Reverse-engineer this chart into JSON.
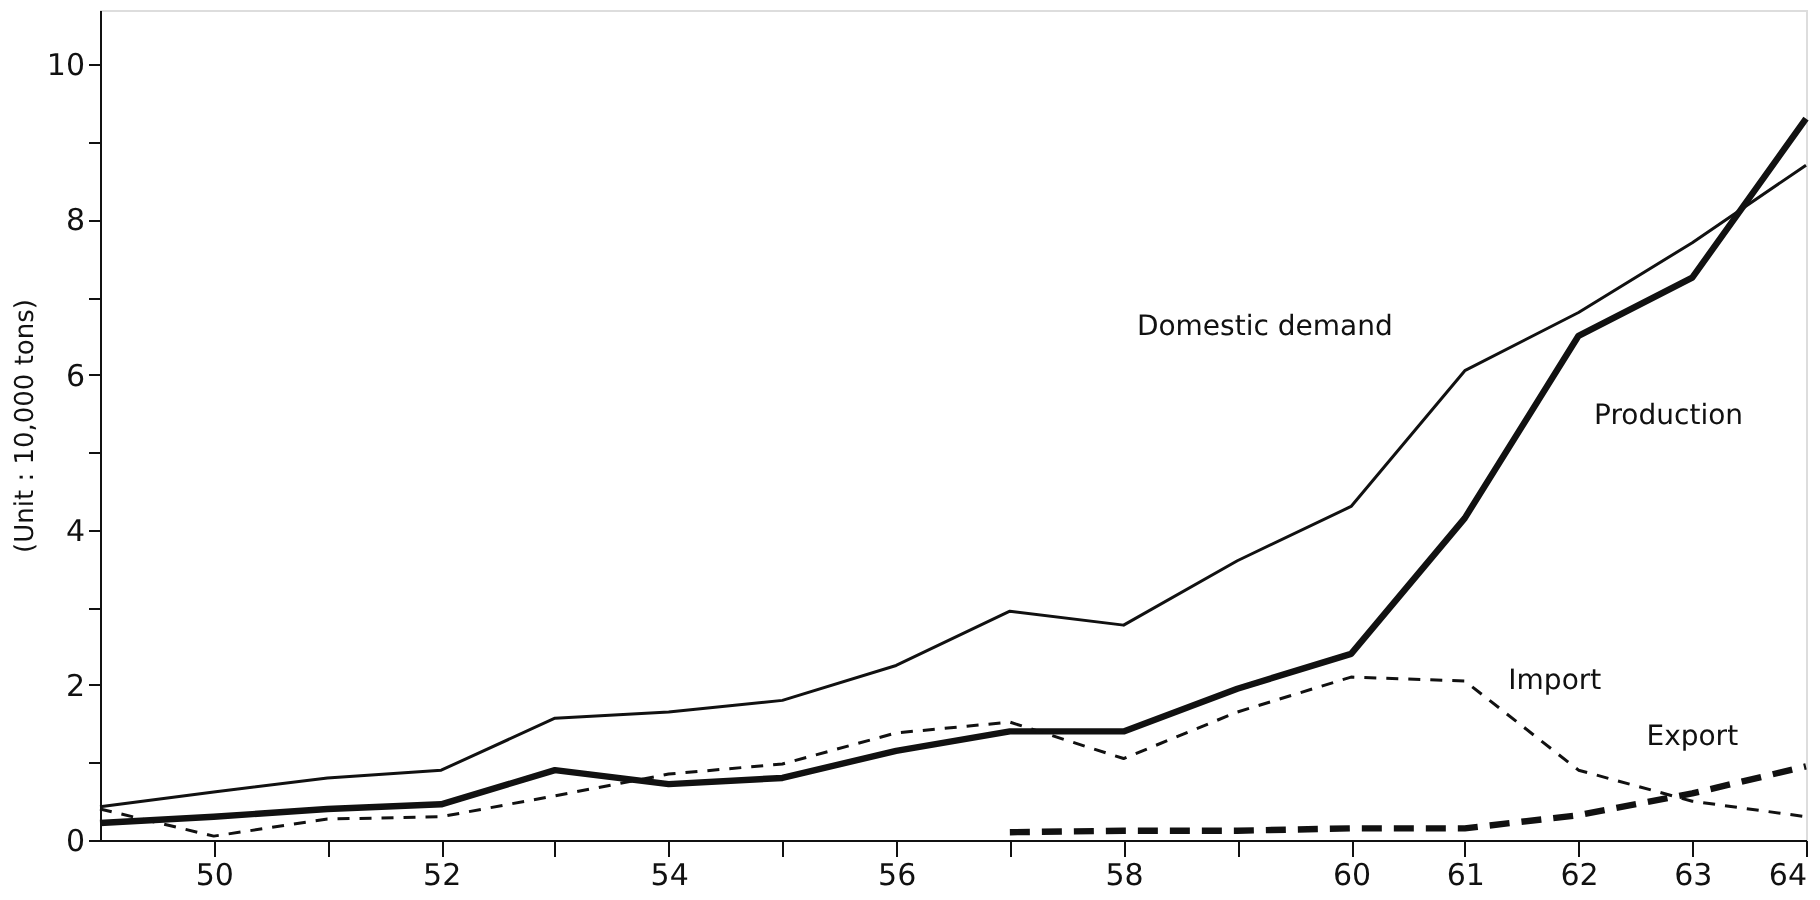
{
  "chart_data": {
    "type": "line",
    "ylabel": "(Unit : 10,000 tons)",
    "x": [
      49,
      50,
      51,
      52,
      53,
      54,
      55,
      56,
      57,
      58,
      59,
      60,
      61,
      62,
      63,
      64
    ],
    "xlim": [
      49,
      64
    ],
    "xticks": [
      50,
      {
        "value": 51,
        "label": null
      },
      52,
      {
        "value": 53,
        "label": null
      },
      54,
      {
        "value": 55,
        "label": null
      },
      56,
      {
        "value": 57,
        "label": null
      },
      58,
      {
        "value": 59,
        "label": null
      },
      60,
      61,
      62,
      63,
      64
    ],
    "ylim": [
      0,
      10.7
    ],
    "yticks": [
      0,
      {
        "value": 1,
        "label": null
      },
      2,
      {
        "value": 3,
        "label": null
      },
      4,
      {
        "value": 5,
        "label": null
      },
      6,
      {
        "value": 7,
        "label": null
      },
      8,
      {
        "value": 9,
        "label": null
      },
      10
    ],
    "grid": false,
    "marker": "none",
    "series": [
      {
        "name": "Domestic demand",
        "color": "#111111",
        "line_style": "solid",
        "values": [
          0.43,
          0.62,
          0.8,
          0.9,
          1.57,
          1.65,
          1.8,
          2.25,
          2.95,
          2.77,
          3.6,
          4.3,
          6.05,
          6.8,
          7.7,
          8.7
        ]
      },
      {
        "name": "Production",
        "color": "#111111",
        "line_style": "solid",
        "values": [
          0.22,
          0.3,
          0.4,
          0.46,
          0.9,
          0.72,
          0.8,
          1.15,
          1.4,
          1.4,
          1.95,
          2.4,
          4.15,
          6.5,
          7.25,
          9.3
        ]
      },
      {
        "name": "Import",
        "color": "#111111",
        "line_style": "dashed",
        "values": [
          0.4,
          0.05,
          0.27,
          0.3,
          0.57,
          0.85,
          0.98,
          1.38,
          1.52,
          1.05,
          1.65,
          2.1,
          2.05,
          0.9,
          0.5,
          0.3
        ]
      },
      {
        "name": "Export",
        "color": "#111111",
        "line_style": "dashed",
        "x": [
          57,
          58,
          59,
          60,
          61,
          62,
          63,
          64
        ],
        "values": [
          0.1,
          0.12,
          0.12,
          0.15,
          0.15,
          0.32,
          0.6,
          0.95
        ]
      }
    ]
  }
}
